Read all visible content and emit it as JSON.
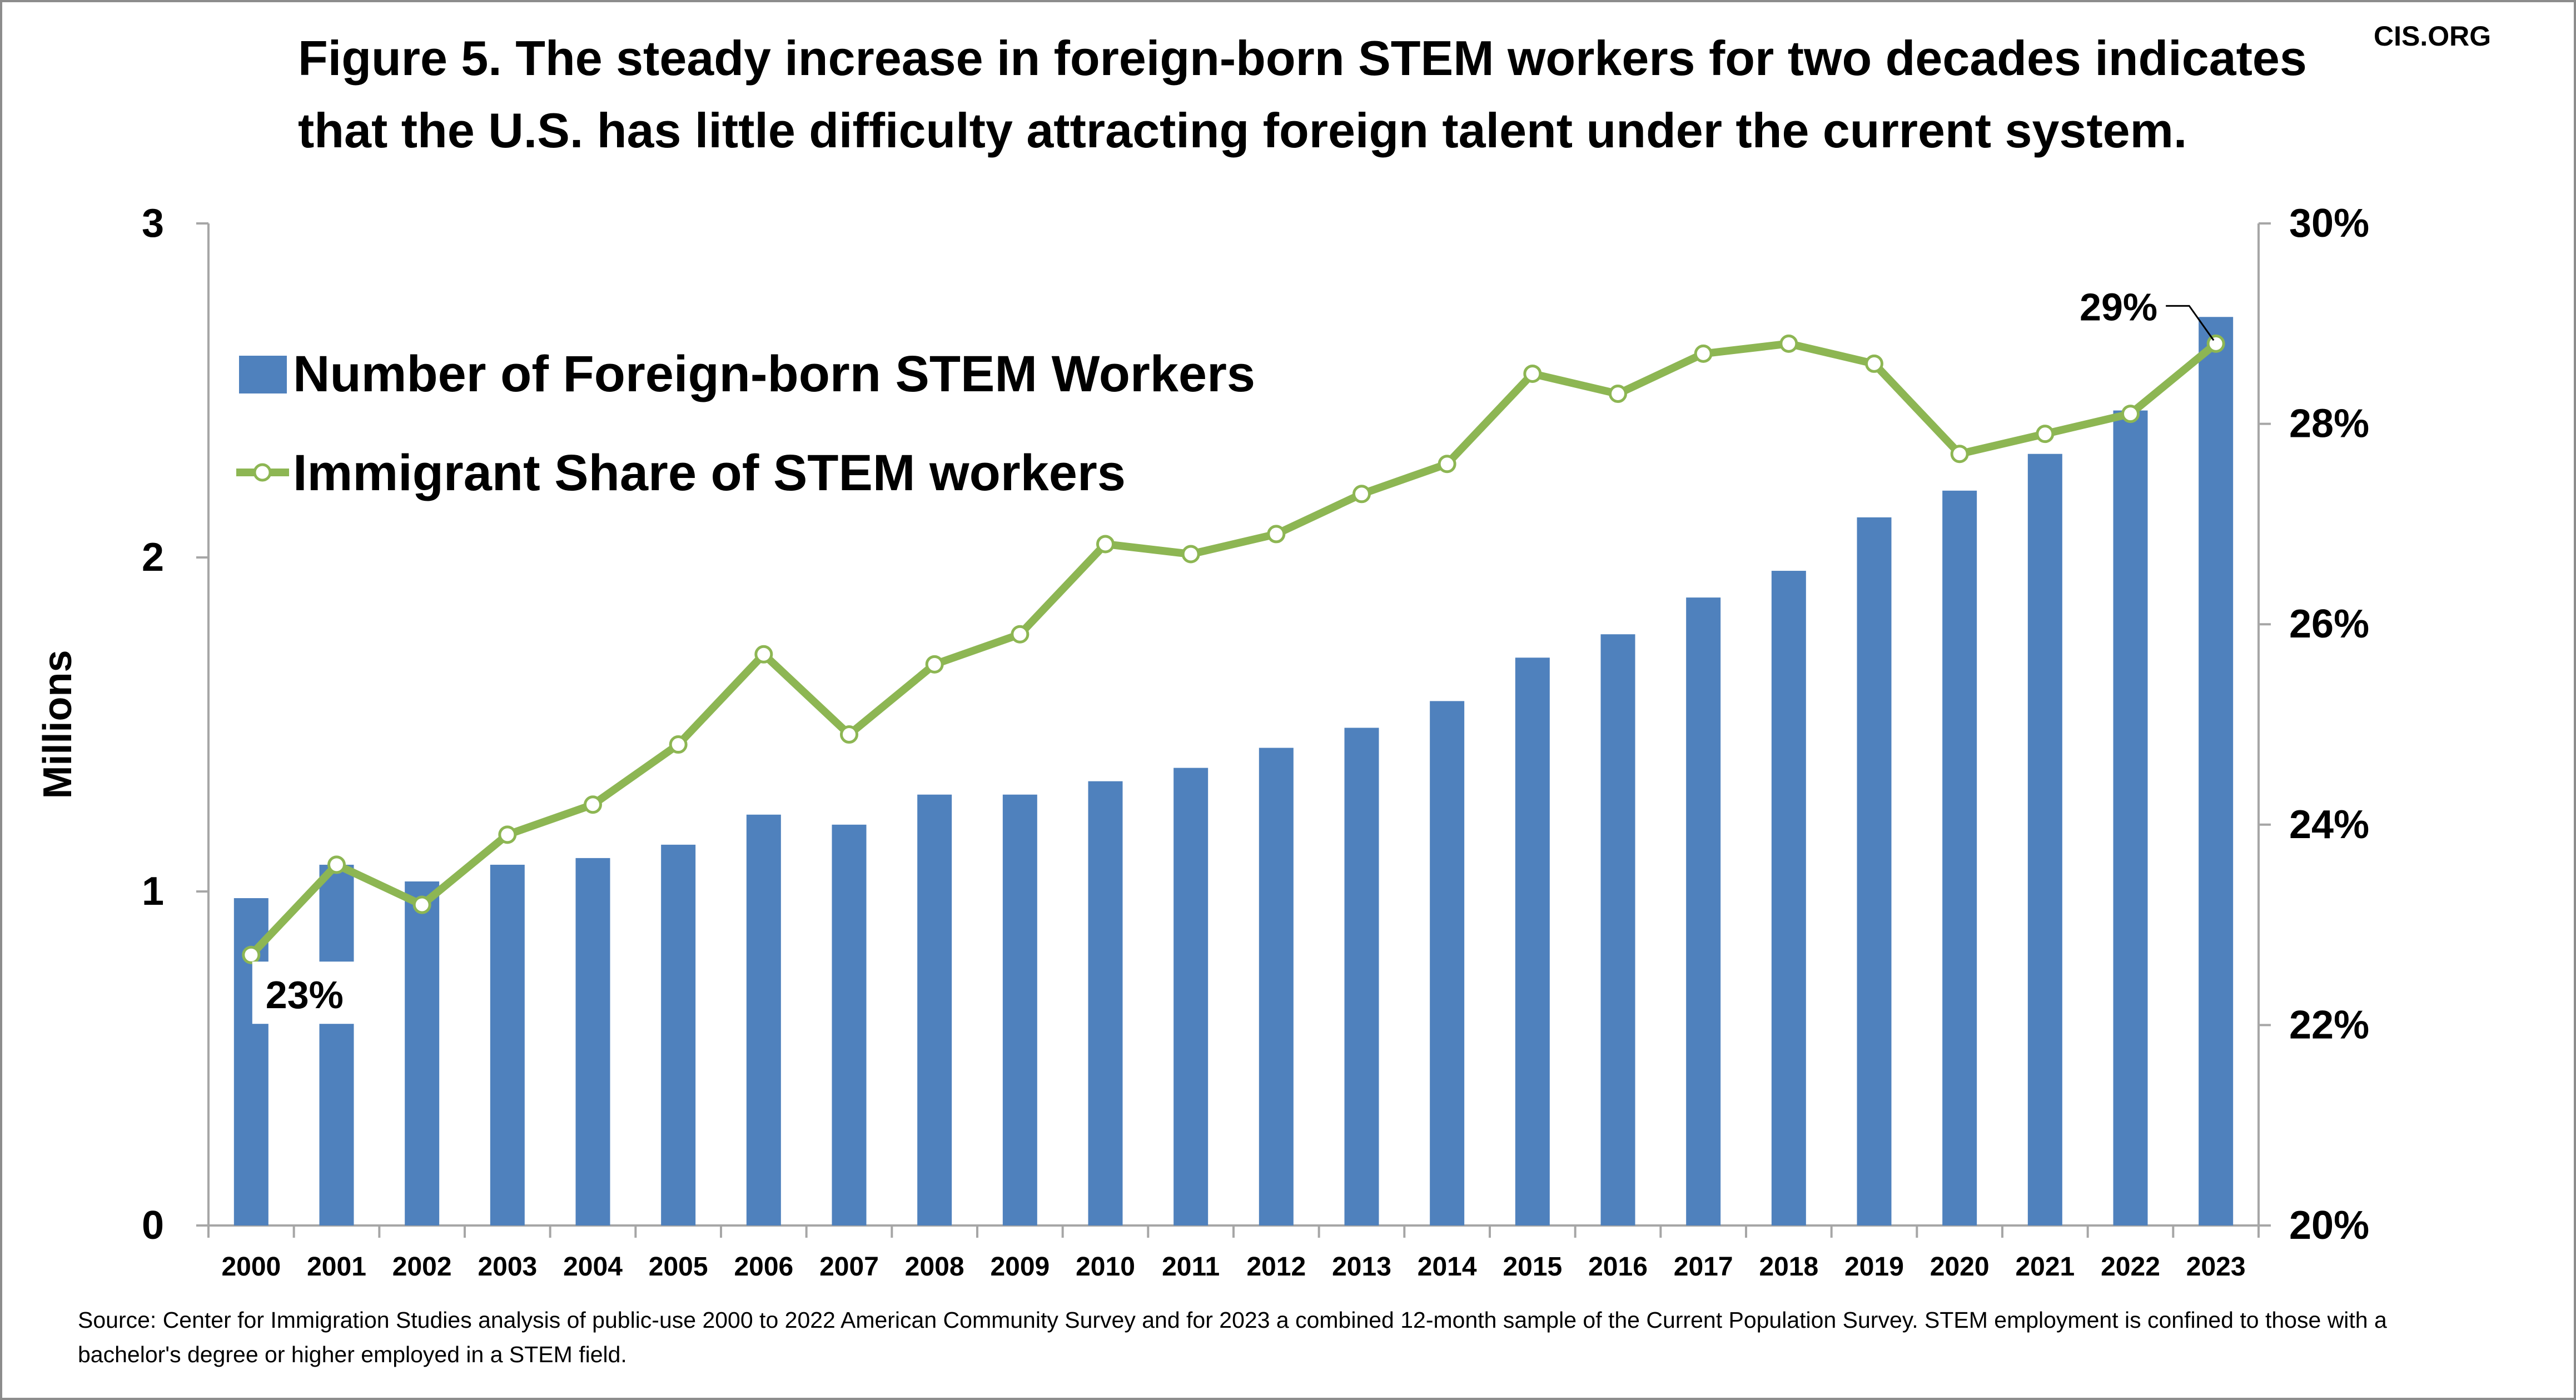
{
  "header": {
    "title": "Figure 5. The steady increase in foreign-born STEM workers for two decades indicates that the U.S. has little difficulty attracting foreign talent under the current system.",
    "brand": "CIS.ORG"
  },
  "footer": {
    "source": "Source: Center for Immigration Studies analysis of public-use 2000 to 2022 American Community Survey and for 2023 a combined 12-month sample of the Current Population Survey. STEM employment is confined to those with a bachelor's degree or higher employed in a STEM field."
  },
  "colors": {
    "bar": "#4F81BD",
    "line": "#8DB653",
    "marker_fill": "#FFFFFF",
    "axis": "#A6A6A6"
  },
  "chart_data": {
    "type": "bar",
    "categories": [
      "2000",
      "2001",
      "2002",
      "2003",
      "2004",
      "2005",
      "2006",
      "2007",
      "2008",
      "2009",
      "2010",
      "2011",
      "2012",
      "2013",
      "2014",
      "2015",
      "2016",
      "2017",
      "2018",
      "2019",
      "2020",
      "2021",
      "2022",
      "2023"
    ],
    "ylabel": "Millions",
    "ylim": [
      0,
      3
    ],
    "yticks": [
      "0",
      "1",
      "2",
      "3"
    ],
    "y2lim": [
      20,
      30
    ],
    "y2ticks": [
      "20%",
      "22%",
      "24%",
      "26%",
      "28%",
      "30%"
    ],
    "legend_position": "top-left",
    "grid": false,
    "series": [
      {
        "name": "Number of Foreign-born STEM Workers",
        "type": "bar",
        "axis": "left",
        "values": [
          0.98,
          1.08,
          1.03,
          1.08,
          1.1,
          1.14,
          1.23,
          1.2,
          1.29,
          1.29,
          1.33,
          1.37,
          1.43,
          1.49,
          1.57,
          1.7,
          1.77,
          1.88,
          1.96,
          2.12,
          2.2,
          2.31,
          2.44,
          2.72
        ]
      },
      {
        "name": "Immigrant Share of STEM workers",
        "type": "line",
        "axis": "right",
        "values": [
          22.7,
          23.6,
          23.2,
          23.9,
          24.2,
          24.8,
          25.7,
          24.9,
          25.6,
          25.9,
          26.8,
          26.7,
          26.9,
          27.3,
          27.6,
          28.5,
          28.3,
          28.7,
          28.8,
          28.6,
          27.7,
          27.9,
          28.1,
          28.8
        ]
      }
    ],
    "annotations": [
      "23%",
      "29%"
    ]
  }
}
